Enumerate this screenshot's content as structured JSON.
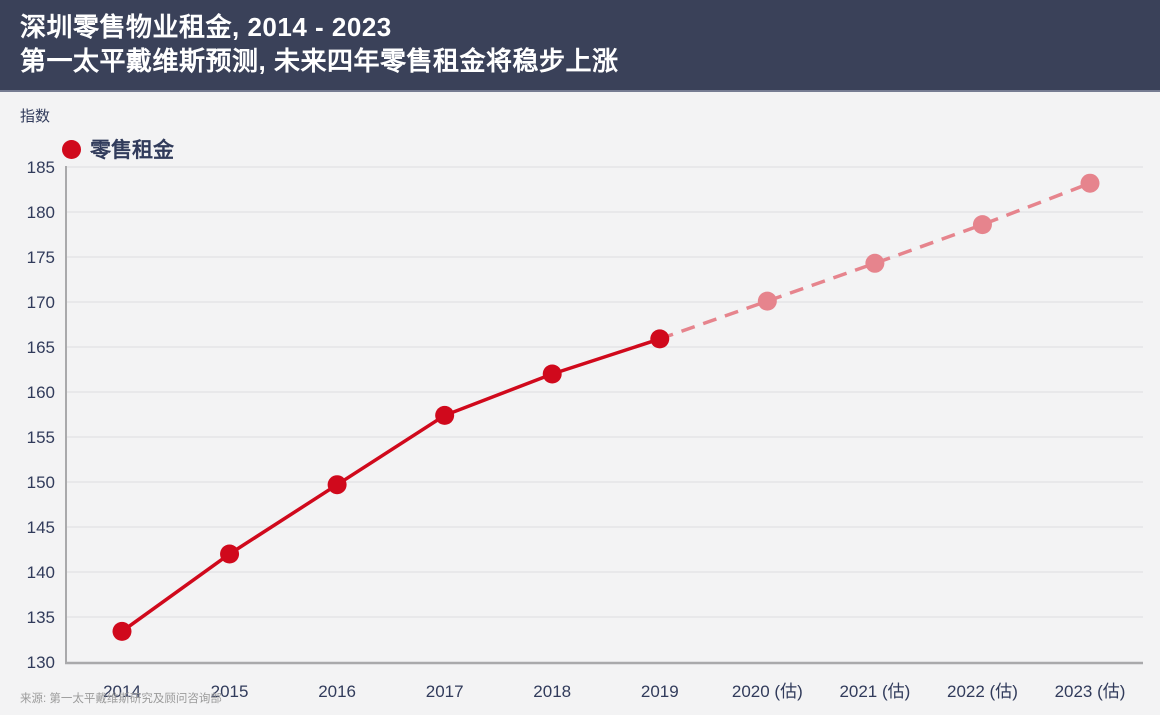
{
  "header": {
    "title_line1": "深圳零售物业租金, 2014 - 2023",
    "title_line2": "第一太平戴维斯预测, 未来四年零售租金将稳步上涨"
  },
  "axis_unit_label": "指数",
  "legend": {
    "label": "零售租金"
  },
  "source": "来源: 第一太平戴维斯研究及顾问咨询部",
  "colors": {
    "header_bg": "#3a4159",
    "navy_text": "#313b5b",
    "actual_red": "#d0091c",
    "forecast_pink": "#e6848d",
    "grid": "#e4e4e6",
    "axis": "#a9a9ab",
    "background": "#f3f3f4",
    "source_gray": "#9b9b9b"
  },
  "chart_data": {
    "type": "line",
    "title": "深圳零售物业租金, 2014 - 2023",
    "subtitle": "第一太平戴维斯预测, 未来四年零售租金将稳步上涨",
    "ylabel": "指数",
    "xlabel": "",
    "ylim": [
      130,
      185
    ],
    "ytick_step": 5,
    "grid": true,
    "legend_position": "top-left",
    "legend_entries": [
      "零售租金"
    ],
    "categories": [
      "2014",
      "2015",
      "2016",
      "2017",
      "2018",
      "2019",
      "2020 (估)",
      "2021 (估)",
      "2022 (估)",
      "2023 (估)"
    ],
    "series": [
      {
        "name": "零售租金",
        "values": [
          133.4,
          142.0,
          149.7,
          157.4,
          162.0,
          165.9,
          170.1,
          174.3,
          178.6,
          183.2
        ],
        "solid_through_index": 5,
        "solid_style_note": "2014-2019 实际值为实线深红, 2019-2023 预测值为虚线粉红"
      }
    ]
  }
}
